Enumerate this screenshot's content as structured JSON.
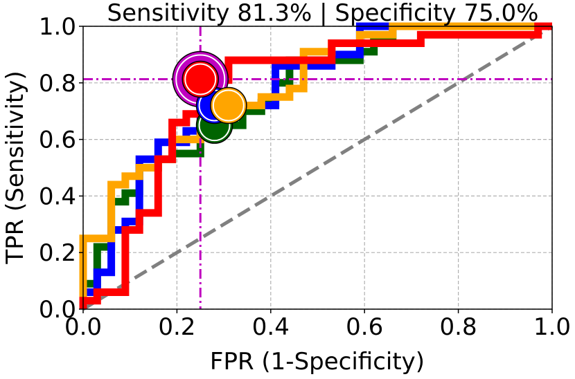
{
  "chart_data": {
    "type": "line",
    "title": "Sensitivity 81.3% | Specificity 75.0%",
    "xlabel": "FPR (1-Specificity)",
    "ylabel": "TPR (Sensitivity)",
    "xlim": [
      0.0,
      1.0
    ],
    "ylim": [
      0.0,
      1.0
    ],
    "xticks": [
      "0.0",
      "0.2",
      "0.4",
      "0.6",
      "0.8",
      "1.0"
    ],
    "yticks": [
      "0.0",
      "0.2",
      "0.4",
      "0.6",
      "0.8",
      "1.0"
    ],
    "grid": true,
    "threshold_lines": {
      "x": 0.25,
      "y": 0.813,
      "color": "#bf00bf"
    },
    "reference_line": {
      "x": [
        0,
        1
      ],
      "y": [
        0,
        1
      ],
      "color": "#808080"
    },
    "series": [
      {
        "name": "green",
        "color": "#006400",
        "x": [
          0,
          0,
          0.03,
          0.03,
          0.06,
          0.06,
          0.09,
          0.09,
          0.12,
          0.12,
          0.16,
          0.16,
          0.19,
          0.19,
          0.25,
          0.25,
          0.28,
          0.28,
          0.34,
          0.34,
          0.38,
          0.38,
          0.41,
          0.41,
          0.44,
          0.44,
          0.59,
          0.59,
          0.62,
          0.62,
          0.66,
          0.66,
          1.0
        ],
        "y": [
          0,
          0.09,
          0.09,
          0.22,
          0.22,
          0.38,
          0.38,
          0.41,
          0.41,
          0.5,
          0.5,
          0.53,
          0.53,
          0.55,
          0.55,
          0.63,
          0.63,
          0.65,
          0.65,
          0.7,
          0.7,
          0.73,
          0.73,
          0.8,
          0.8,
          0.88,
          0.88,
          0.91,
          0.91,
          0.95,
          0.95,
          1.0,
          1.0
        ],
        "marker": {
          "x": 0.28,
          "y": 0.65
        }
      },
      {
        "name": "blue",
        "color": "#0000ff",
        "x": [
          0,
          0,
          0.03,
          0.03,
          0.06,
          0.06,
          0.09,
          0.09,
          0.12,
          0.12,
          0.16,
          0.16,
          0.22,
          0.22,
          0.25,
          0.25,
          0.41,
          0.41,
          0.53,
          0.53,
          0.59,
          0.59,
          1.0
        ],
        "y": [
          0,
          0.06,
          0.06,
          0.13,
          0.13,
          0.28,
          0.28,
          0.31,
          0.31,
          0.53,
          0.53,
          0.59,
          0.59,
          0.63,
          0.63,
          0.72,
          0.72,
          0.86,
          0.86,
          0.9,
          0.9,
          1.0,
          1.0
        ],
        "marker": {
          "x": 0.28,
          "y": 0.72
        }
      },
      {
        "name": "orange",
        "color": "#ffa500",
        "x": [
          0,
          0,
          0.03,
          0.03,
          0.06,
          0.06,
          0.09,
          0.09,
          0.12,
          0.12,
          0.16,
          0.16,
          0.19,
          0.19,
          0.25,
          0.25,
          0.31,
          0.31,
          0.38,
          0.38,
          0.44,
          0.44,
          0.47,
          0.47,
          0.53,
          0.53,
          0.59,
          0.59,
          0.66,
          0.66,
          1.0
        ],
        "y": [
          0,
          0.25,
          0.25,
          0.25,
          0.25,
          0.44,
          0.44,
          0.47,
          0.47,
          0.5,
          0.5,
          0.53,
          0.53,
          0.6,
          0.6,
          0.66,
          0.66,
          0.72,
          0.72,
          0.75,
          0.75,
          0.78,
          0.78,
          0.91,
          0.91,
          0.94,
          0.94,
          0.97,
          0.97,
          1.0,
          1.0
        ],
        "marker": {
          "x": 0.31,
          "y": 0.72
        }
      },
      {
        "name": "red",
        "color": "#ff0000",
        "x": [
          0,
          0,
          0.03,
          0.03,
          0.09,
          0.09,
          0.12,
          0.12,
          0.16,
          0.16,
          0.19,
          0.19,
          0.22,
          0.22,
          0.25,
          0.25,
          0.31,
          0.31,
          0.53,
          0.53,
          0.72,
          0.72,
          0.97,
          0.97,
          1.0
        ],
        "y": [
          0,
          0.03,
          0.03,
          0.06,
          0.06,
          0.28,
          0.28,
          0.34,
          0.34,
          0.53,
          0.53,
          0.66,
          0.66,
          0.69,
          0.69,
          0.81,
          0.81,
          0.88,
          0.88,
          0.94,
          0.94,
          0.97,
          0.97,
          1.0,
          1.0
        ],
        "marker": {
          "x": 0.25,
          "y": 0.813
        }
      }
    ],
    "highlight_point": {
      "x": 0.25,
      "y": 0.813,
      "color": "#bf00bf"
    }
  }
}
